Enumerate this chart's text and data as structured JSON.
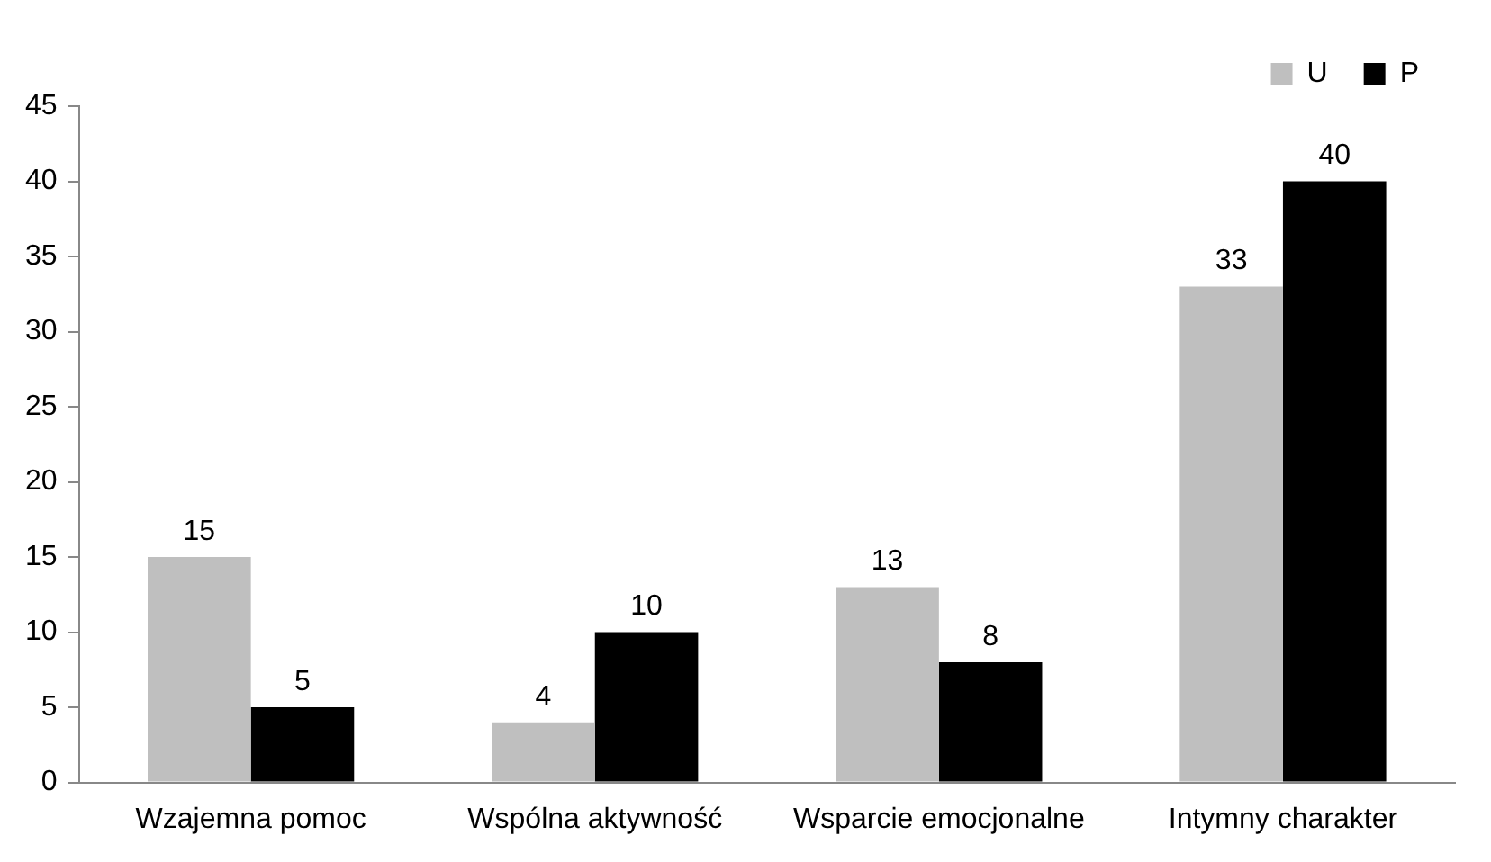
{
  "chart_data": {
    "type": "bar",
    "categories": [
      "Wzajemna pomoc",
      "Wspólna aktywność",
      "Wsparcie emocjonalne",
      "Intymny charakter"
    ],
    "series": [
      {
        "name": "U",
        "color": "#bfbfbf",
        "values": [
          15,
          4,
          13,
          33
        ]
      },
      {
        "name": "P",
        "color": "#000000",
        "values": [
          5,
          10,
          8,
          40
        ]
      }
    ],
    "ylim": [
      0,
      45
    ],
    "yticks": [
      0,
      5,
      10,
      15,
      20,
      25,
      30,
      35,
      40,
      45
    ],
    "grid": false,
    "legend": "top right",
    "data_labels": true
  }
}
